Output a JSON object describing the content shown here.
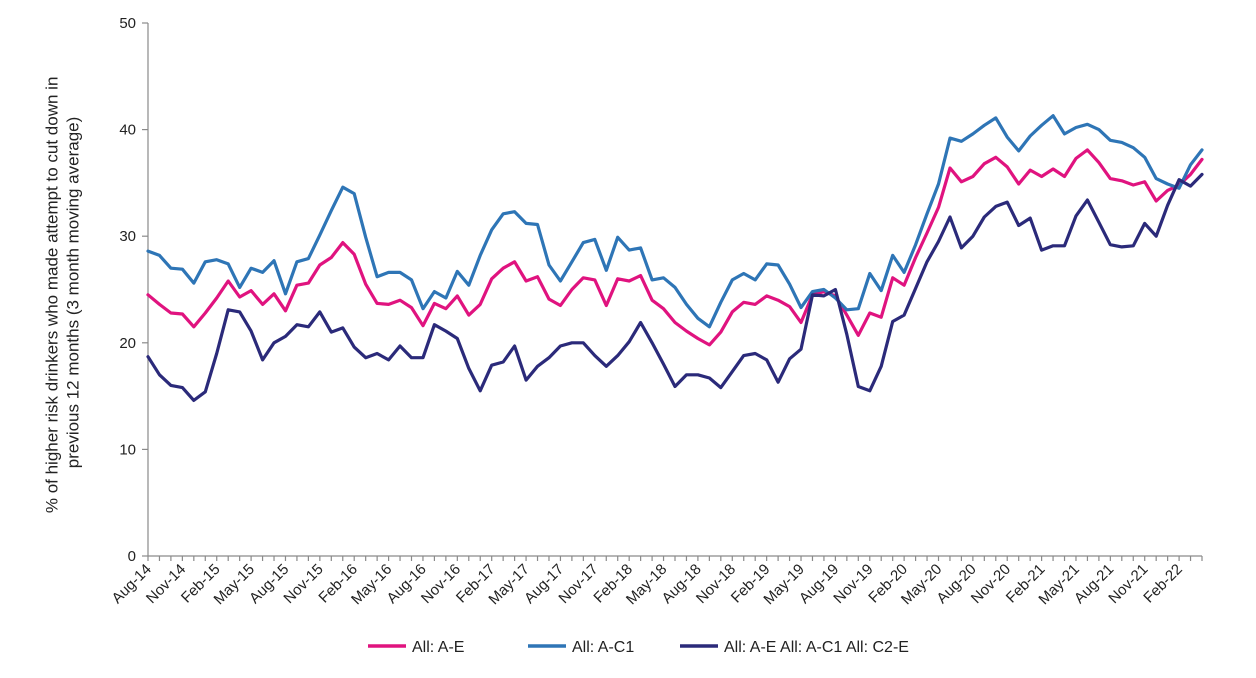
{
  "chart_data": {
    "type": "line",
    "ylabel_line1": "% of higher risk drinkers who made attempt to cut down in",
    "ylabel_line2": "previous 12 months (3 month moving average)",
    "xlabel": "",
    "ylim": [
      0,
      50
    ],
    "yticks": [
      0,
      10,
      20,
      30,
      40,
      50
    ],
    "grid": false,
    "legend": "bottom",
    "x_labels": [
      "Aug-14",
      "Nov-14",
      "Feb-15",
      "May-15",
      "Aug-15",
      "Nov-15",
      "Feb-16",
      "May-16",
      "Aug-16",
      "Nov-16",
      "Feb-17",
      "May-17",
      "Aug-17",
      "Nov-17",
      "Feb-18",
      "May-18",
      "Aug-18",
      "Nov-18",
      "Feb-19",
      "May-19",
      "Aug-19",
      "Nov-19",
      "Feb-20",
      "May-20",
      "Aug-20",
      "Nov-20",
      "Feb-21",
      "May-21",
      "Aug-21",
      "Nov-21",
      "Feb-22"
    ],
    "x_label_step": 3,
    "n_points": 93,
    "series": [
      {
        "name": "All: A-E",
        "color": "#e0137f",
        "values": [
          24.5,
          23.6,
          22.8,
          22.7,
          21.5,
          22.8,
          24.2,
          25.8,
          24.3,
          24.9,
          23.6,
          24.6,
          23.0,
          25.4,
          25.6,
          27.3,
          28.0,
          29.4,
          28.3,
          25.5,
          23.7,
          23.6,
          24.0,
          23.3,
          21.6,
          23.7,
          23.2,
          24.4,
          22.6,
          23.6,
          26.0,
          27.0,
          27.6,
          25.8,
          26.2,
          24.1,
          23.5,
          25.0,
          26.1,
          25.9,
          23.5,
          26.0,
          25.8,
          26.3,
          24.0,
          23.2,
          21.9,
          21.1,
          20.4,
          19.8,
          21.0,
          22.9,
          23.8,
          23.6,
          24.4,
          24.0,
          23.4,
          21.9,
          24.5,
          24.8,
          24.4,
          22.6,
          20.7,
          22.8,
          22.4,
          26.1,
          25.4,
          28.0,
          30.3,
          32.7,
          36.4,
          35.1,
          35.6,
          36.8,
          37.4,
          36.5,
          34.9,
          36.2,
          35.6,
          36.3,
          35.6,
          37.3,
          38.1,
          36.9,
          35.4,
          35.2,
          34.8,
          35.1,
          33.3,
          34.3,
          34.8,
          35.8,
          37.2
        ]
      },
      {
        "name": "All: A-C1",
        "color": "#2e75b6",
        "values": [
          28.6,
          28.2,
          27.0,
          26.9,
          25.6,
          27.6,
          27.8,
          27.4,
          25.2,
          27.0,
          26.6,
          27.7,
          24.6,
          27.6,
          27.9,
          30.1,
          32.4,
          34.6,
          34.0,
          29.9,
          26.2,
          26.6,
          26.6,
          25.9,
          23.2,
          24.8,
          24.2,
          26.7,
          25.4,
          28.2,
          30.6,
          32.1,
          32.3,
          31.2,
          31.1,
          27.3,
          25.8,
          27.6,
          29.4,
          29.7,
          26.8,
          29.9,
          28.7,
          28.9,
          25.9,
          26.1,
          25.2,
          23.6,
          22.3,
          21.5,
          23.8,
          25.9,
          26.5,
          25.9,
          27.4,
          27.3,
          25.5,
          23.3,
          24.8,
          25.0,
          24.2,
          23.1,
          23.2,
          26.5,
          24.9,
          28.2,
          26.6,
          29.2,
          32.1,
          34.9,
          39.2,
          38.9,
          39.6,
          40.4,
          41.1,
          39.3,
          38.0,
          39.4,
          40.4,
          41.3,
          39.6,
          40.2,
          40.5,
          40.0,
          39.0,
          38.8,
          38.3,
          37.4,
          35.4,
          34.9,
          34.5,
          36.7,
          38.1
        ]
      },
      {
        "name": "All: A-E All: A-C1 All: C2-E",
        "color": "#2b2a7a",
        "values": [
          18.7,
          17.0,
          16.0,
          15.8,
          14.6,
          15.4,
          19.0,
          23.1,
          22.9,
          21.1,
          18.4,
          20.0,
          20.6,
          21.7,
          21.5,
          22.9,
          21.0,
          21.4,
          19.6,
          18.6,
          19.0,
          18.4,
          19.7,
          18.6,
          18.6,
          21.7,
          21.1,
          20.4,
          17.6,
          15.5,
          17.9,
          18.2,
          19.7,
          16.5,
          17.8,
          18.6,
          19.7,
          20.0,
          20.0,
          18.8,
          17.8,
          18.8,
          20.1,
          21.9,
          20.0,
          18.0,
          15.9,
          17.0,
          17.0,
          16.7,
          15.8,
          17.3,
          18.8,
          19.0,
          18.4,
          16.3,
          18.5,
          19.4,
          24.5,
          24.4,
          25.0,
          20.8,
          15.9,
          15.5,
          17.8,
          22.0,
          22.6,
          25.1,
          27.6,
          29.5,
          31.8,
          28.9,
          30.0,
          31.8,
          32.8,
          33.2,
          31.0,
          31.7,
          28.7,
          29.1,
          29.1,
          31.9,
          33.4,
          31.3,
          29.2,
          29.0,
          29.1,
          31.2,
          30.0,
          32.9,
          35.3,
          34.7,
          35.8
        ]
      }
    ]
  }
}
